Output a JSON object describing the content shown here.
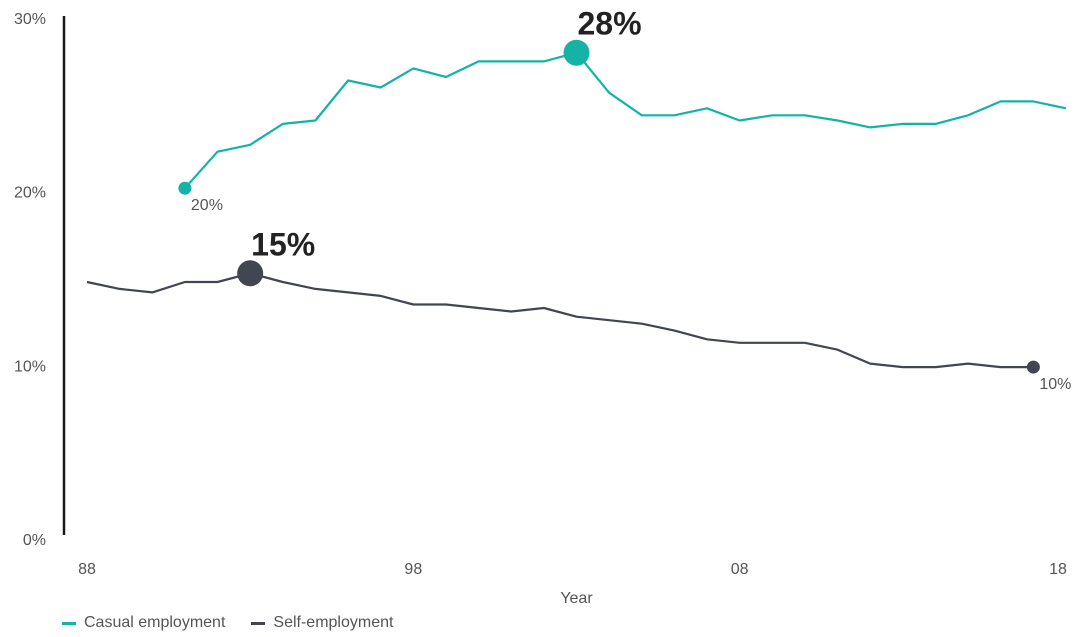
{
  "chart_data": {
    "type": "line",
    "xlabel": "Year",
    "ylabel": "",
    "ylim": [
      0,
      30
    ],
    "xlim": [
      1988,
      2018
    ],
    "yticks": [
      {
        "value": 0,
        "label": "0%"
      },
      {
        "value": 10,
        "label": "10%"
      },
      {
        "value": 20,
        "label": "20%"
      },
      {
        "value": 30,
        "label": "30%"
      }
    ],
    "xticks": [
      {
        "value": 1988,
        "label": "88"
      },
      {
        "value": 1998,
        "label": "98"
      },
      {
        "value": 2008,
        "label": "08"
      },
      {
        "value": 2018,
        "label": "18"
      }
    ],
    "grid": false,
    "legend_position": "bottom-left",
    "series": [
      {
        "name": "Casual employment",
        "color": "#14b3a6",
        "x": [
          1991,
          1992,
          1993,
          1994,
          1995,
          1996,
          1997,
          1998,
          1999,
          2000,
          2001,
          2002,
          2003,
          2004,
          2005,
          2006,
          2007,
          2008,
          2009,
          2010,
          2011,
          2012,
          2013,
          2014,
          2015,
          2016,
          2017,
          2018
        ],
        "values": [
          20.2,
          22.3,
          22.7,
          23.9,
          24.1,
          26.4,
          26.0,
          27.1,
          26.6,
          27.5,
          27.5,
          27.5,
          28.0,
          25.7,
          24.4,
          24.4,
          24.8,
          24.1,
          24.4,
          24.4,
          24.1,
          23.7,
          23.9,
          23.9,
          24.4,
          25.2,
          25.2,
          24.8
        ]
      },
      {
        "name": "Self-employment",
        "color": "#424650",
        "x": [
          1988,
          1989,
          1990,
          1991,
          1992,
          1993,
          1994,
          1995,
          1996,
          1997,
          1998,
          1999,
          2000,
          2001,
          2002,
          2003,
          2004,
          2005,
          2006,
          2007,
          2008,
          2009,
          2010,
          2011,
          2012,
          2013,
          2014,
          2015,
          2016,
          2017
        ],
        "values": [
          14.8,
          14.4,
          14.2,
          14.8,
          14.8,
          15.3,
          14.8,
          14.4,
          14.2,
          14.0,
          13.5,
          13.5,
          13.3,
          13.1,
          13.3,
          12.8,
          12.6,
          12.4,
          12.0,
          11.5,
          11.3,
          11.3,
          11.3,
          10.9,
          10.1,
          9.9,
          9.9,
          10.1,
          9.9,
          9.9
        ]
      }
    ],
    "annotations": [
      {
        "series": 0,
        "x": 1991,
        "y": 20.2,
        "text": "20%",
        "kind": "start"
      },
      {
        "series": 0,
        "x": 2003,
        "y": 28.0,
        "text": "28%",
        "kind": "peak"
      },
      {
        "series": 1,
        "x": 1993,
        "y": 15.3,
        "text": "15%",
        "kind": "peak"
      },
      {
        "series": 1,
        "x": 2017,
        "y": 9.9,
        "text": "10%",
        "kind": "end"
      }
    ]
  }
}
